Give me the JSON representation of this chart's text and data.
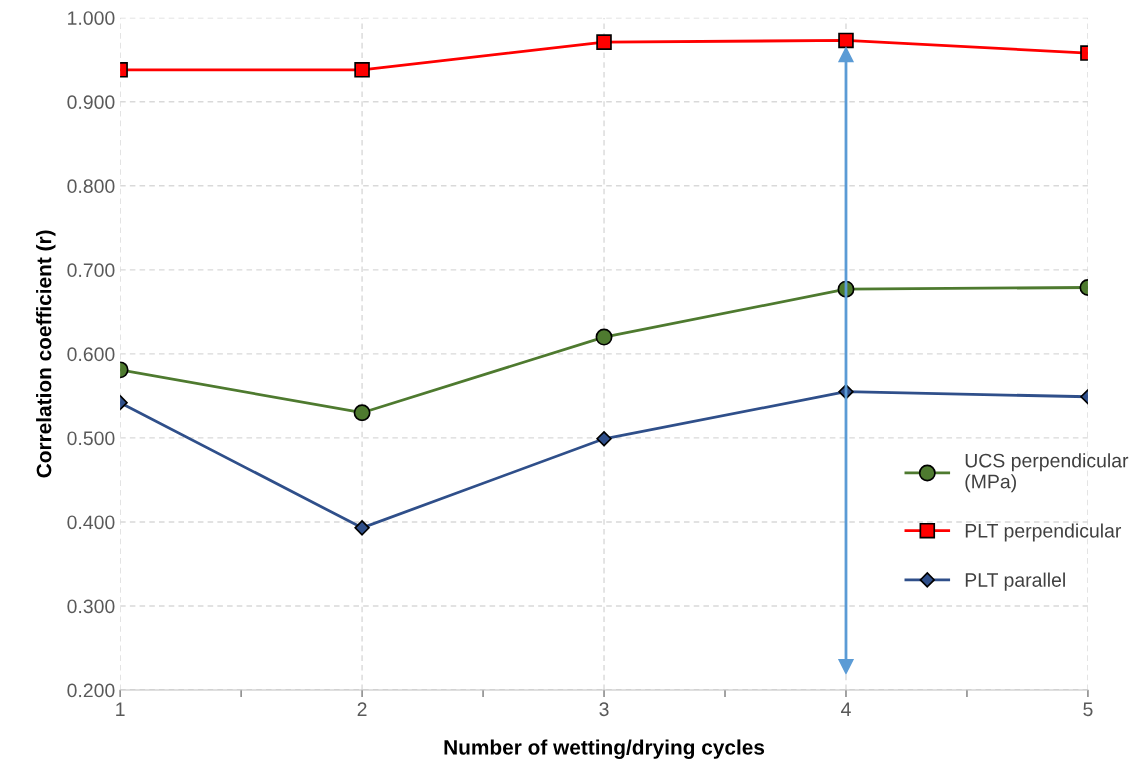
{
  "chart_data": {
    "type": "line",
    "xlabel": "Number of wetting/drying cycles",
    "ylabel": "Correlation coefficient (r)",
    "x": [
      1,
      2,
      3,
      4,
      5
    ],
    "series": [
      {
        "name": "UCS perpendicular\n(MPa)",
        "color": "#4e7a2f",
        "marker": "circle",
        "values": [
          0.581,
          0.53,
          0.62,
          0.677,
          0.679
        ]
      },
      {
        "name": "PLT perpendicular",
        "color": "#ff0000",
        "marker": "square",
        "values": [
          0.938,
          0.938,
          0.971,
          0.973,
          0.958
        ]
      },
      {
        "name": "PLT parallel",
        "color": "#2f4f8a",
        "marker": "diamond",
        "values": [
          0.542,
          0.393,
          0.499,
          0.555,
          0.549
        ]
      }
    ],
    "xlim": [
      1,
      5
    ],
    "ylim": [
      0.2,
      1.0
    ],
    "xticks": [
      1,
      {
        "value": 1.5,
        "label": null
      },
      2,
      {
        "value": 2.5,
        "label": null
      },
      3,
      {
        "value": 3.5,
        "label": null
      },
      4,
      {
        "value": 4.5,
        "label": null
      },
      5
    ],
    "yticks": [
      {
        "value": 0.2,
        "label": "0.200"
      },
      {
        "value": 0.3,
        "label": "0.300"
      },
      {
        "value": 0.4,
        "label": "0.400"
      },
      {
        "value": 0.5,
        "label": "0.500"
      },
      {
        "value": 0.6,
        "label": "0.600"
      },
      {
        "value": 0.7,
        "label": "0.700"
      },
      {
        "value": 0.8,
        "label": "0.800"
      },
      {
        "value": 0.9,
        "label": "0.900"
      },
      {
        "value": 1.0,
        "label": "1.000"
      }
    ],
    "ref_lines": [
      {
        "axis": "x",
        "value": 4,
        "color": "#5b9bd5",
        "line_style": "solid"
      }
    ],
    "grid": true,
    "legend": "right",
    "line_style": "solid"
  }
}
